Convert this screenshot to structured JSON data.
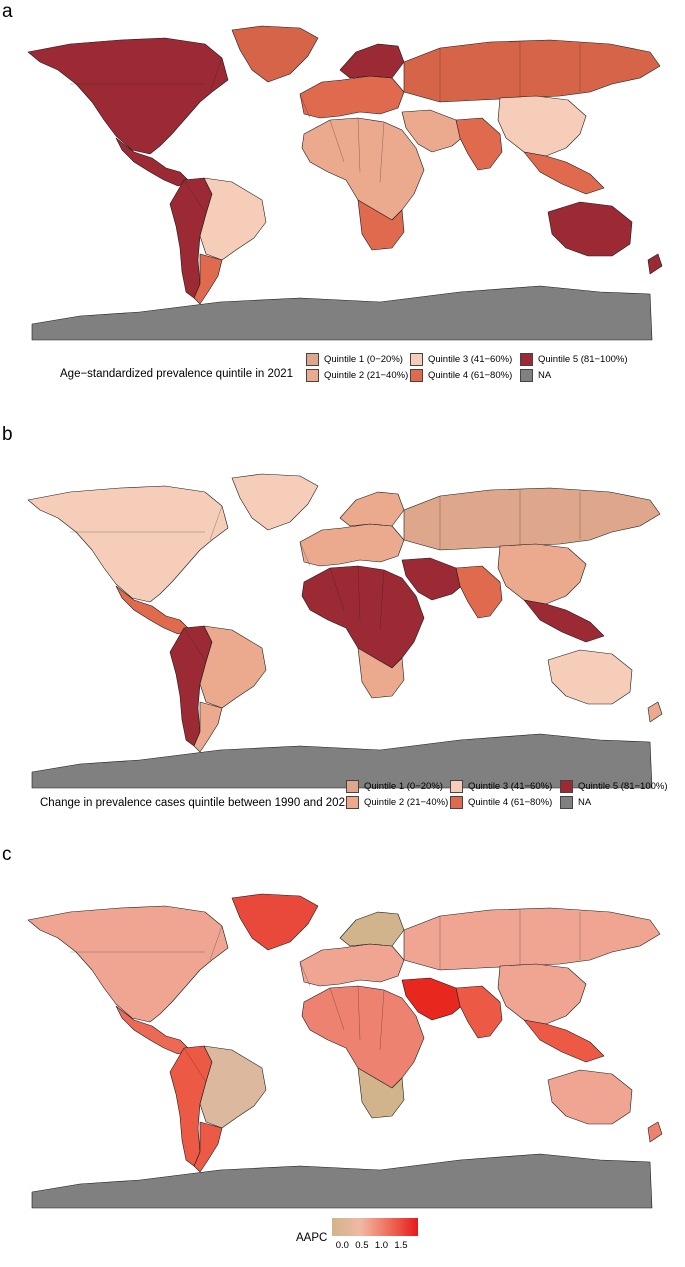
{
  "panels": [
    {
      "letter": "a",
      "legend_title": "Age−standardized prevalence quintile in 2021",
      "legend_items": [
        {
          "label": "Quintile 1 (0−20%)",
          "color": "#dea68a"
        },
        {
          "label": "Quintile 2 (21−40%)",
          "color": "#eba98e"
        },
        {
          "label": "Quintile 3 (41−60%)",
          "color": "#f5cdb9"
        },
        {
          "label": "Quintile 4 (61−80%)",
          "color": "#df6a4e"
        },
        {
          "label": "Quintile 5 (81−100%)",
          "color": "#9c2a35"
        },
        {
          "label": "NA",
          "color": "#808080"
        }
      ],
      "regions": [
        {
          "name": "north-america",
          "color": "#9c2a35"
        },
        {
          "name": "greenland",
          "color": "#d56449"
        },
        {
          "name": "central-america",
          "color": "#9c2a35"
        },
        {
          "name": "south-america-west",
          "color": "#9c2a35"
        },
        {
          "name": "brazil",
          "color": "#f5cdb9"
        },
        {
          "name": "southern-cone",
          "color": "#df6a4e"
        },
        {
          "name": "europe-west",
          "color": "#df6a4e"
        },
        {
          "name": "scandinavia",
          "color": "#9c2a35"
        },
        {
          "name": "russia",
          "color": "#d56449"
        },
        {
          "name": "africa",
          "color": "#eba98e"
        },
        {
          "name": "southern-africa",
          "color": "#df6a4e"
        },
        {
          "name": "middle-east",
          "color": "#eba98e"
        },
        {
          "name": "south-asia",
          "color": "#df6a4e"
        },
        {
          "name": "east-asia",
          "color": "#f5cdb9"
        },
        {
          "name": "southeast-asia",
          "color": "#df6a4e"
        },
        {
          "name": "australia",
          "color": "#9c2a35"
        },
        {
          "name": "new-zealand",
          "color": "#9c2a35"
        },
        {
          "name": "antarctica",
          "color": "#808080"
        }
      ]
    },
    {
      "letter": "b",
      "legend_title": "Change in prevalence cases quintile between 1990 and 2021",
      "legend_items": [
        {
          "label": "Quintile 1 (0−20%)",
          "color": "#dea68a"
        },
        {
          "label": "Quintile 2 (21−40%)",
          "color": "#eba98e"
        },
        {
          "label": "Quintile 3 (41−60%)",
          "color": "#f5cdb9"
        },
        {
          "label": "Quintile 4 (61−80%)",
          "color": "#df6a4e"
        },
        {
          "label": "Quintile 5 (81−100%)",
          "color": "#9c2a35"
        },
        {
          "label": "NA",
          "color": "#808080"
        }
      ],
      "regions": [
        {
          "name": "north-america",
          "color": "#f5cdb9"
        },
        {
          "name": "greenland",
          "color": "#f5cdb9"
        },
        {
          "name": "central-america",
          "color": "#df6a4e"
        },
        {
          "name": "south-america-west",
          "color": "#9c2a35"
        },
        {
          "name": "brazil",
          "color": "#eba98e"
        },
        {
          "name": "southern-cone",
          "color": "#eba98e"
        },
        {
          "name": "europe-west",
          "color": "#eba98e"
        },
        {
          "name": "scandinavia",
          "color": "#eba98e"
        },
        {
          "name": "russia",
          "color": "#dea68a"
        },
        {
          "name": "africa",
          "color": "#9c2a35"
        },
        {
          "name": "southern-africa",
          "color": "#eba98e"
        },
        {
          "name": "middle-east",
          "color": "#9c2a35"
        },
        {
          "name": "south-asia",
          "color": "#df6a4e"
        },
        {
          "name": "east-asia",
          "color": "#eba98e"
        },
        {
          "name": "southeast-asia",
          "color": "#9c2a35"
        },
        {
          "name": "australia",
          "color": "#f5cdb9"
        },
        {
          "name": "new-zealand",
          "color": "#eba98e"
        },
        {
          "name": "antarctica",
          "color": "#808080"
        }
      ]
    },
    {
      "letter": "c",
      "colorbar": {
        "title": "AAPC",
        "ticks": [
          "0.0",
          "0.5",
          "1.0",
          "1.5"
        ],
        "tick_values": [
          0.0,
          0.5,
          1.0,
          1.5
        ],
        "min": -0.3,
        "max": 1.9,
        "colors": [
          "#d2b48c",
          "#f0b8a4",
          "#ee6d5a",
          "#e8181d"
        ]
      },
      "regions": [
        {
          "name": "north-america",
          "color": "#f0a593"
        },
        {
          "name": "greenland",
          "color": "#e9493a"
        },
        {
          "name": "central-america",
          "color": "#ec6a55"
        },
        {
          "name": "south-america-west",
          "color": "#ec5a45"
        },
        {
          "name": "brazil",
          "color": "#dbb89e"
        },
        {
          "name": "southern-cone",
          "color": "#ec5a45"
        },
        {
          "name": "europe-west",
          "color": "#f0a593"
        },
        {
          "name": "scandinavia",
          "color": "#d2b48c"
        },
        {
          "name": "russia",
          "color": "#f0a593"
        },
        {
          "name": "africa",
          "color": "#ee8270"
        },
        {
          "name": "southern-africa",
          "color": "#d2b48c"
        },
        {
          "name": "middle-east",
          "color": "#e8281f"
        },
        {
          "name": "south-asia",
          "color": "#ec5a45"
        },
        {
          "name": "east-asia",
          "color": "#f0a593"
        },
        {
          "name": "southeast-asia",
          "color": "#ec5a45"
        },
        {
          "name": "australia",
          "color": "#f0a593"
        },
        {
          "name": "new-zealand",
          "color": "#ee8270"
        },
        {
          "name": "antarctica",
          "color": "#808080"
        }
      ]
    }
  ]
}
